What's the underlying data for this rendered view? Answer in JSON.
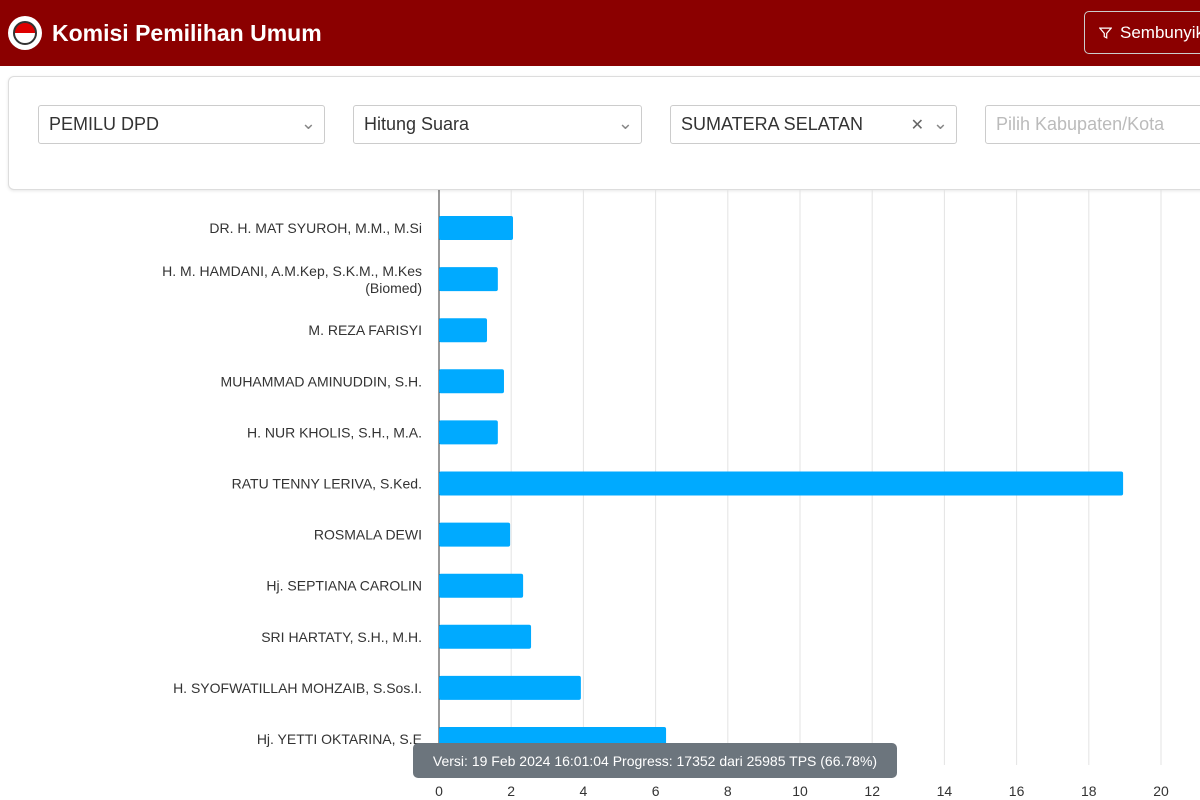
{
  "header": {
    "title": "Komisi Pemilihan Umum",
    "hide_button": "Sembunyikan",
    "logo_icon": "kpu-logo"
  },
  "filters": {
    "election": "PEMILU DPD",
    "mode": "Hitung Suara",
    "province": "SUMATERA SELATAN",
    "regency_placeholder": "Pilih Kabupaten/Kota"
  },
  "tooltip": "Versi: 19 Feb 2024 16:01:04 Progress: 17352 dari 25985 TPS (66.78%)",
  "colors": {
    "header": "#8b0000",
    "bar": "#00aaff"
  },
  "chart_data": {
    "type": "bar",
    "orientation": "horizontal",
    "grid": true,
    "xlim": [
      0,
      20
    ],
    "xticks": [
      0,
      2,
      4,
      6,
      8,
      10,
      12,
      14,
      16,
      18,
      20
    ],
    "categories": [
      "DR. H. MAT SYUROH, M.M., M.Si",
      "H. M. HAMDANI, A.M.Kep, S.K.M., M.Kes (Biomed)",
      "M. REZA FARISYI",
      "MUHAMMAD AMINUDDIN, S.H.",
      "H. NUR KHOLIS, S.H., M.A.",
      "RATU TENNY LERIVA, S.Ked.",
      "ROSMALA DEWI",
      "Hj. SEPTIANA CAROLIN",
      "SRI HARTATY, S.H., M.H.",
      "H. SYOFWATILLAH MOHZAIB, S.Sos.I.",
      "Hj. YETTI OKTARINA, S.E"
    ],
    "values": [
      2.05,
      1.63,
      1.33,
      1.8,
      1.63,
      18.95,
      1.97,
      2.33,
      2.55,
      3.93,
      6.29
    ]
  }
}
